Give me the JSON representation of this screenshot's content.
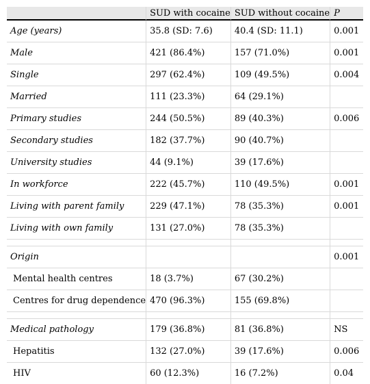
{
  "header": {
    "col0": "",
    "col1": "SUD with cocaine",
    "col2": "SUD without cocaine",
    "col3": "P"
  },
  "rows": [
    {
      "label": "Age (years)",
      "a": "35.8 (SD: 7.6)",
      "b": "40.4 (SD: 11.1)",
      "p": "0.001"
    },
    {
      "label": "Male",
      "a": "421 (86.4%)",
      "b": "157 (71.0%)",
      "p": "0.001"
    },
    {
      "label": "Single",
      "a": "297 (62.4%)",
      "b": "109 (49.5%)",
      "p": "0.004"
    },
    {
      "label": "Married",
      "a": "111 (23.3%)",
      "b": "64 (29.1%)",
      "p": ""
    },
    {
      "label": "Primary studies",
      "a": "244 (50.5%)",
      "b": "89 (40.3%)",
      "p": "0.006"
    },
    {
      "label": "Secondary studies",
      "a": "182 (37.7%)",
      "b": "90 (40.7%)",
      "p": ""
    },
    {
      "label": "University studies",
      "a": "44 (9.1%)",
      "b": "39 (17.6%)",
      "p": ""
    },
    {
      "label": "In workforce",
      "a": "222 (45.7%)",
      "b": "110 (49.5%)",
      "p": "0.001"
    },
    {
      "label": "Living with parent family",
      "a": "229 (47.1%)",
      "b": "78 (35.3%)",
      "p": "0.001"
    },
    {
      "label": "Living with own family",
      "a": "131 (27.0%)",
      "b": "78 (35.3%)",
      "p": ""
    },
    {
      "label": "Origin",
      "a": "",
      "b": "",
      "p": "0.001"
    },
    {
      "label": "Mental health centres",
      "a": "18 (3.7%)",
      "b": "67 (30.2%)",
      "p": ""
    },
    {
      "label": "Centres for drug dependence",
      "a": "470 (96.3%)",
      "b": "155 (69.8%)",
      "p": ""
    },
    {
      "label": "Medical pathology",
      "a": "179 (36.8%)",
      "b": "81 (36.8%)",
      "p": "NS"
    },
    {
      "label": "Hepatitis",
      "a": "132 (27.0%)",
      "b": "39 (17.6%)",
      "p": "0.006"
    },
    {
      "label": "HIV",
      "a": "60 (12.3%)",
      "b": "16 (7.2%)",
      "p": "0.04"
    }
  ]
}
